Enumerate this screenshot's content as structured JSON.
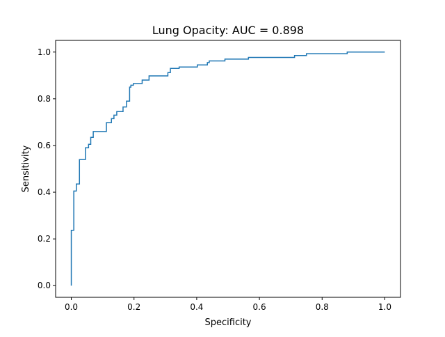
{
  "chart_data": {
    "type": "line",
    "title": "Lung Opacity: AUC = 0.898",
    "xlabel": "Specificity",
    "ylabel": "Sensitivity",
    "xlim": [
      -0.05,
      1.05
    ],
    "ylim": [
      -0.05,
      1.05
    ],
    "xticks": [
      0.0,
      0.2,
      0.4,
      0.6,
      0.8,
      1.0
    ],
    "yticks": [
      0.0,
      0.2,
      0.4,
      0.6,
      0.8,
      1.0
    ],
    "xtick_labels": [
      "0.0",
      "0.2",
      "0.4",
      "0.6",
      "0.8",
      "1.0"
    ],
    "ytick_labels": [
      "0.0",
      "0.2",
      "0.4",
      "0.6",
      "0.8",
      "1.0"
    ],
    "grid": false,
    "series": [
      {
        "color": "#1f77b4",
        "drawstyle": "steps-post",
        "x": [
          0.0,
          0.0,
          0.008,
          0.008,
          0.016,
          0.016,
          0.026,
          0.026,
          0.045,
          0.045,
          0.055,
          0.055,
          0.062,
          0.062,
          0.07,
          0.07,
          0.112,
          0.112,
          0.128,
          0.128,
          0.136,
          0.136,
          0.145,
          0.145,
          0.165,
          0.165,
          0.176,
          0.176,
          0.186,
          0.186,
          0.19,
          0.19,
          0.198,
          0.198,
          0.226,
          0.226,
          0.248,
          0.248,
          0.308,
          0.308,
          0.316,
          0.316,
          0.344,
          0.344,
          0.402,
          0.402,
          0.434,
          0.434,
          0.44,
          0.44,
          0.49,
          0.49,
          0.565,
          0.565,
          0.712,
          0.712,
          0.75,
          0.75,
          0.88,
          0.88,
          1.0
        ],
        "y": [
          0.0,
          0.237,
          0.237,
          0.405,
          0.405,
          0.435,
          0.435,
          0.54,
          0.54,
          0.59,
          0.59,
          0.605,
          0.605,
          0.635,
          0.635,
          0.66,
          0.66,
          0.698,
          0.698,
          0.715,
          0.715,
          0.73,
          0.73,
          0.745,
          0.745,
          0.765,
          0.765,
          0.79,
          0.79,
          0.85,
          0.85,
          0.858,
          0.858,
          0.865,
          0.865,
          0.88,
          0.88,
          0.898,
          0.898,
          0.912,
          0.912,
          0.93,
          0.93,
          0.936,
          0.936,
          0.945,
          0.945,
          0.955,
          0.955,
          0.962,
          0.962,
          0.97,
          0.97,
          0.977,
          0.977,
          0.985,
          0.985,
          0.993,
          0.993,
          1.0,
          1.0
        ]
      }
    ]
  }
}
